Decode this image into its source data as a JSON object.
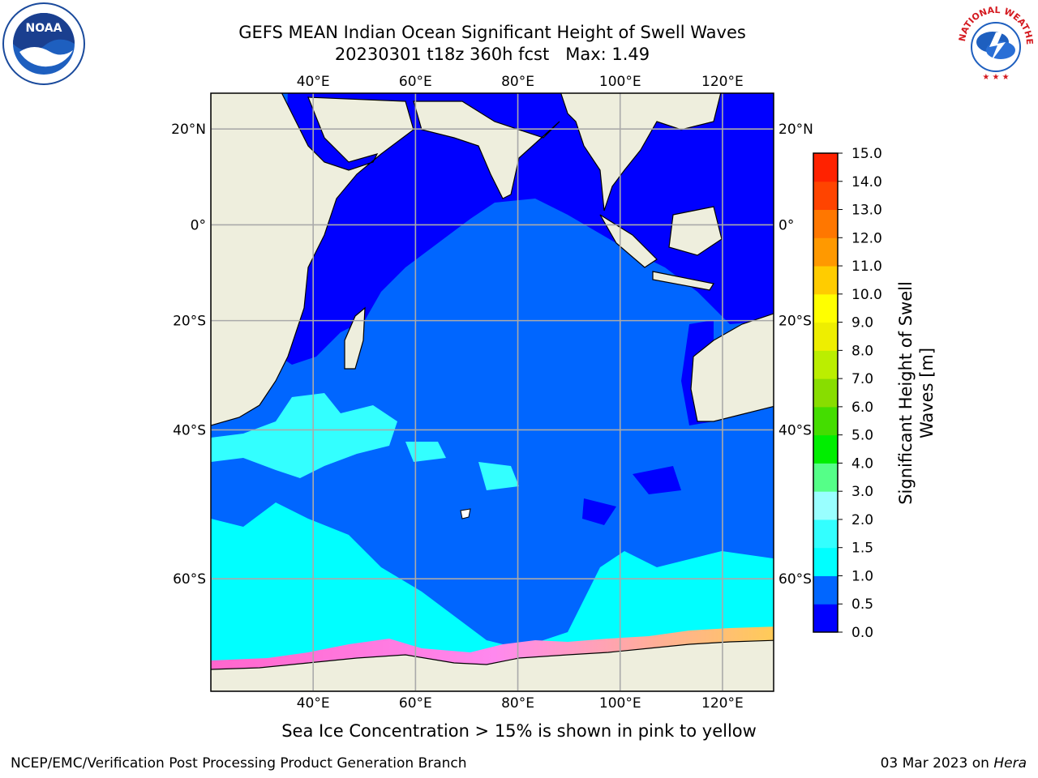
{
  "title": {
    "line1": "GEFS MEAN Indian Ocean Significant Height of Swell Waves",
    "line2": "20230301 t18z 360h fcst   Max: 1.49"
  },
  "axes": {
    "lon_labels": [
      "40°E",
      "60°E",
      "80°E",
      "100°E",
      "120°E"
    ],
    "lon_values": [
      40,
      60,
      80,
      100,
      120
    ],
    "lat_labels": [
      "20°N",
      "0°",
      "20°S",
      "40°S",
      "60°S"
    ],
    "lat_values": [
      20,
      0,
      -20,
      -40,
      -60
    ],
    "lon_range": [
      20,
      130
    ],
    "lat_range": [
      -70,
      27
    ]
  },
  "colorbar": {
    "title_line1": "Significant Height of Swell",
    "title_line2": "Waves [m]",
    "tick_labels": [
      "0.0",
      "0.5",
      "1.0",
      "1.5",
      "2.0",
      "3.0",
      "4.0",
      "5.0",
      "6.0",
      "7.0",
      "8.0",
      "9.0",
      "10.0",
      "11.0",
      "12.0",
      "13.0",
      "14.0",
      "15.0"
    ],
    "colors": [
      "#0000ff",
      "#0066ff",
      "#00ffff",
      "#33ffff",
      "#99ffff",
      "#55ff88",
      "#00ee00",
      "#44dd00",
      "#88dd00",
      "#bbee00",
      "#eeee00",
      "#ffff00",
      "#ffcc00",
      "#ff9900",
      "#ff7700",
      "#ff4400",
      "#ff2200",
      "#ff0000"
    ]
  },
  "legend_colors": {
    "ocean_low": "#0000ff",
    "ocean_mid": "#0066ff",
    "swell_high": "#00ffff",
    "land": "#eeeedd",
    "sea_ice": "#ff66cc"
  },
  "note": "Sea Ice Concentration > 15% is shown in pink to yellow",
  "footer": {
    "left": "NCEP/EMC/Verification Post Processing Product Generation Branch",
    "date": "03 Mar 2023 on ",
    "machine": "Hera"
  },
  "logos": {
    "noaa_text": "NOAA",
    "nws_text": "NATIONAL WEATHER SERVICE"
  }
}
